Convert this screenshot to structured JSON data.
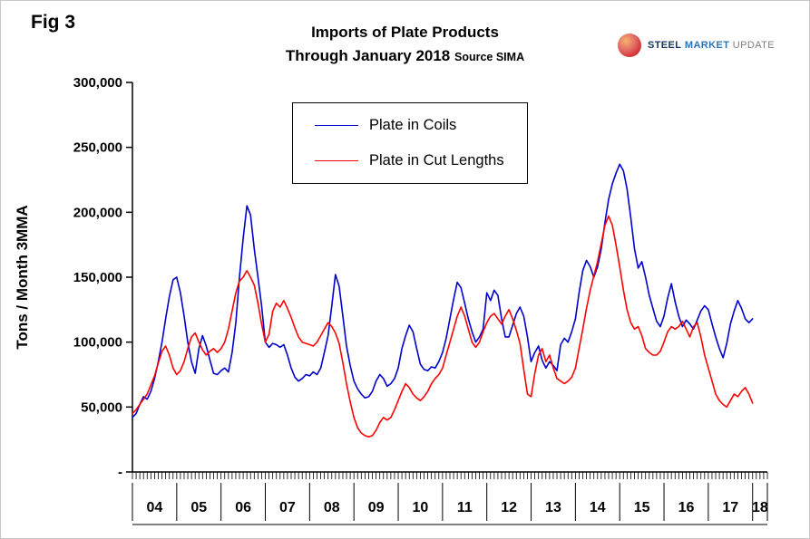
{
  "fig_label": "Fig 3",
  "title": {
    "line1": "Imports of Plate Products",
    "line2": "Through January 2018",
    "source": "Source SIMA"
  },
  "logo": {
    "steel": "STEEL",
    "market": "MARKET",
    "update": "UPDATE"
  },
  "chart_data": {
    "type": "line",
    "title": "Imports of Plate Products Through January 2018",
    "source": "Source SIMA",
    "ylabel": "Tons / Month 3MMA",
    "ylim": [
      0,
      300000
    ],
    "ytick_step": 50000,
    "ytick_labels": [
      "-",
      "50,000",
      "100,000",
      "150,000",
      "200,000",
      "250,000",
      "300,000"
    ],
    "x_start": "2004-01",
    "x_end": "2018-01",
    "x_year_labels": [
      "04",
      "05",
      "06",
      "07",
      "08",
      "09",
      "10",
      "11",
      "12",
      "13",
      "14",
      "15",
      "16",
      "17",
      "18"
    ],
    "grid": false,
    "legend_position": "upper-center-in-plot",
    "series": [
      {
        "name": "Plate in Coils",
        "color": "#0000CC",
        "values": [
          42000,
          45000,
          52000,
          58000,
          56000,
          62000,
          72000,
          85000,
          100000,
          118000,
          135000,
          148000,
          150000,
          138000,
          120000,
          100000,
          85000,
          76000,
          95000,
          105000,
          97000,
          86000,
          76000,
          75000,
          78000,
          80000,
          77000,
          92000,
          115000,
          150000,
          180000,
          205000,
          198000,
          172000,
          150000,
          128000,
          100000,
          96000,
          99000,
          98000,
          96000,
          98000,
          90000,
          80000,
          73000,
          70000,
          72000,
          75000,
          74000,
          77000,
          75000,
          80000,
          92000,
          105000,
          128000,
          152000,
          143000,
          120000,
          97000,
          82000,
          70000,
          64000,
          60000,
          57000,
          58000,
          62000,
          70000,
          75000,
          72000,
          66000,
          68000,
          72000,
          80000,
          95000,
          105000,
          113000,
          108000,
          95000,
          83000,
          79000,
          78000,
          81000,
          80000,
          85000,
          92000,
          103000,
          118000,
          133000,
          146000,
          142000,
          130000,
          118000,
          108000,
          100000,
          104000,
          110000,
          138000,
          132000,
          140000,
          136000,
          118000,
          104000,
          104000,
          113000,
          122000,
          127000,
          120000,
          104000,
          85000,
          92000,
          97000,
          86000,
          80000,
          85000,
          82000,
          78000,
          98000,
          103000,
          100000,
          108000,
          118000,
          138000,
          155000,
          163000,
          158000,
          150000,
          158000,
          172000,
          192000,
          210000,
          222000,
          230000,
          237000,
          232000,
          218000,
          196000,
          172000,
          157000,
          162000,
          150000,
          136000,
          126000,
          116000,
          112000,
          120000,
          134000,
          145000,
          131000,
          120000,
          112000,
          117000,
          114000,
          110000,
          117000,
          124000,
          128000,
          125000,
          114000,
          104000,
          95000,
          88000,
          99000,
          114000,
          124000,
          132000,
          126000,
          118000,
          115000,
          118000
        ]
      },
      {
        "name": "Plate in Cut Lengths",
        "color": "#FF0000",
        "values": [
          45000,
          48000,
          52000,
          56000,
          60000,
          67000,
          74000,
          84000,
          93000,
          97000,
          90000,
          80000,
          75000,
          78000,
          85000,
          95000,
          104000,
          107000,
          100000,
          94000,
          90000,
          93000,
          95000,
          92000,
          95000,
          100000,
          110000,
          124000,
          138000,
          147000,
          150000,
          155000,
          150000,
          144000,
          130000,
          114000,
          100000,
          106000,
          124000,
          130000,
          127000,
          132000,
          126000,
          119000,
          111000,
          104000,
          100000,
          99000,
          98000,
          97000,
          100000,
          105000,
          110000,
          115000,
          112000,
          107000,
          99000,
          84000,
          68000,
          54000,
          42000,
          34000,
          30000,
          28000,
          27000,
          28000,
          32000,
          38000,
          42000,
          40000,
          42000,
          48000,
          55000,
          62000,
          68000,
          65000,
          60000,
          57000,
          55000,
          58000,
          62000,
          68000,
          72000,
          75000,
          80000,
          90000,
          100000,
          110000,
          120000,
          127000,
          120000,
          110000,
          100000,
          96000,
          100000,
          108000,
          115000,
          120000,
          122000,
          118000,
          114000,
          120000,
          125000,
          118000,
          109000,
          99000,
          79000,
          60000,
          58000,
          76000,
          90000,
          95000,
          85000,
          90000,
          80000,
          72000,
          70000,
          68000,
          70000,
          73000,
          80000,
          95000,
          110000,
          126000,
          140000,
          151000,
          162000,
          176000,
          190000,
          197000,
          190000,
          175000,
          158000,
          140000,
          125000,
          115000,
          110000,
          112000,
          105000,
          95000,
          92000,
          90000,
          90000,
          93000,
          100000,
          108000,
          112000,
          110000,
          112000,
          116000,
          110000,
          104000,
          112000,
          115000,
          104000,
          90000,
          80000,
          70000,
          60000,
          55000,
          52000,
          50000,
          55000,
          60000,
          58000,
          62000,
          65000,
          60000,
          53000
        ]
      }
    ]
  }
}
